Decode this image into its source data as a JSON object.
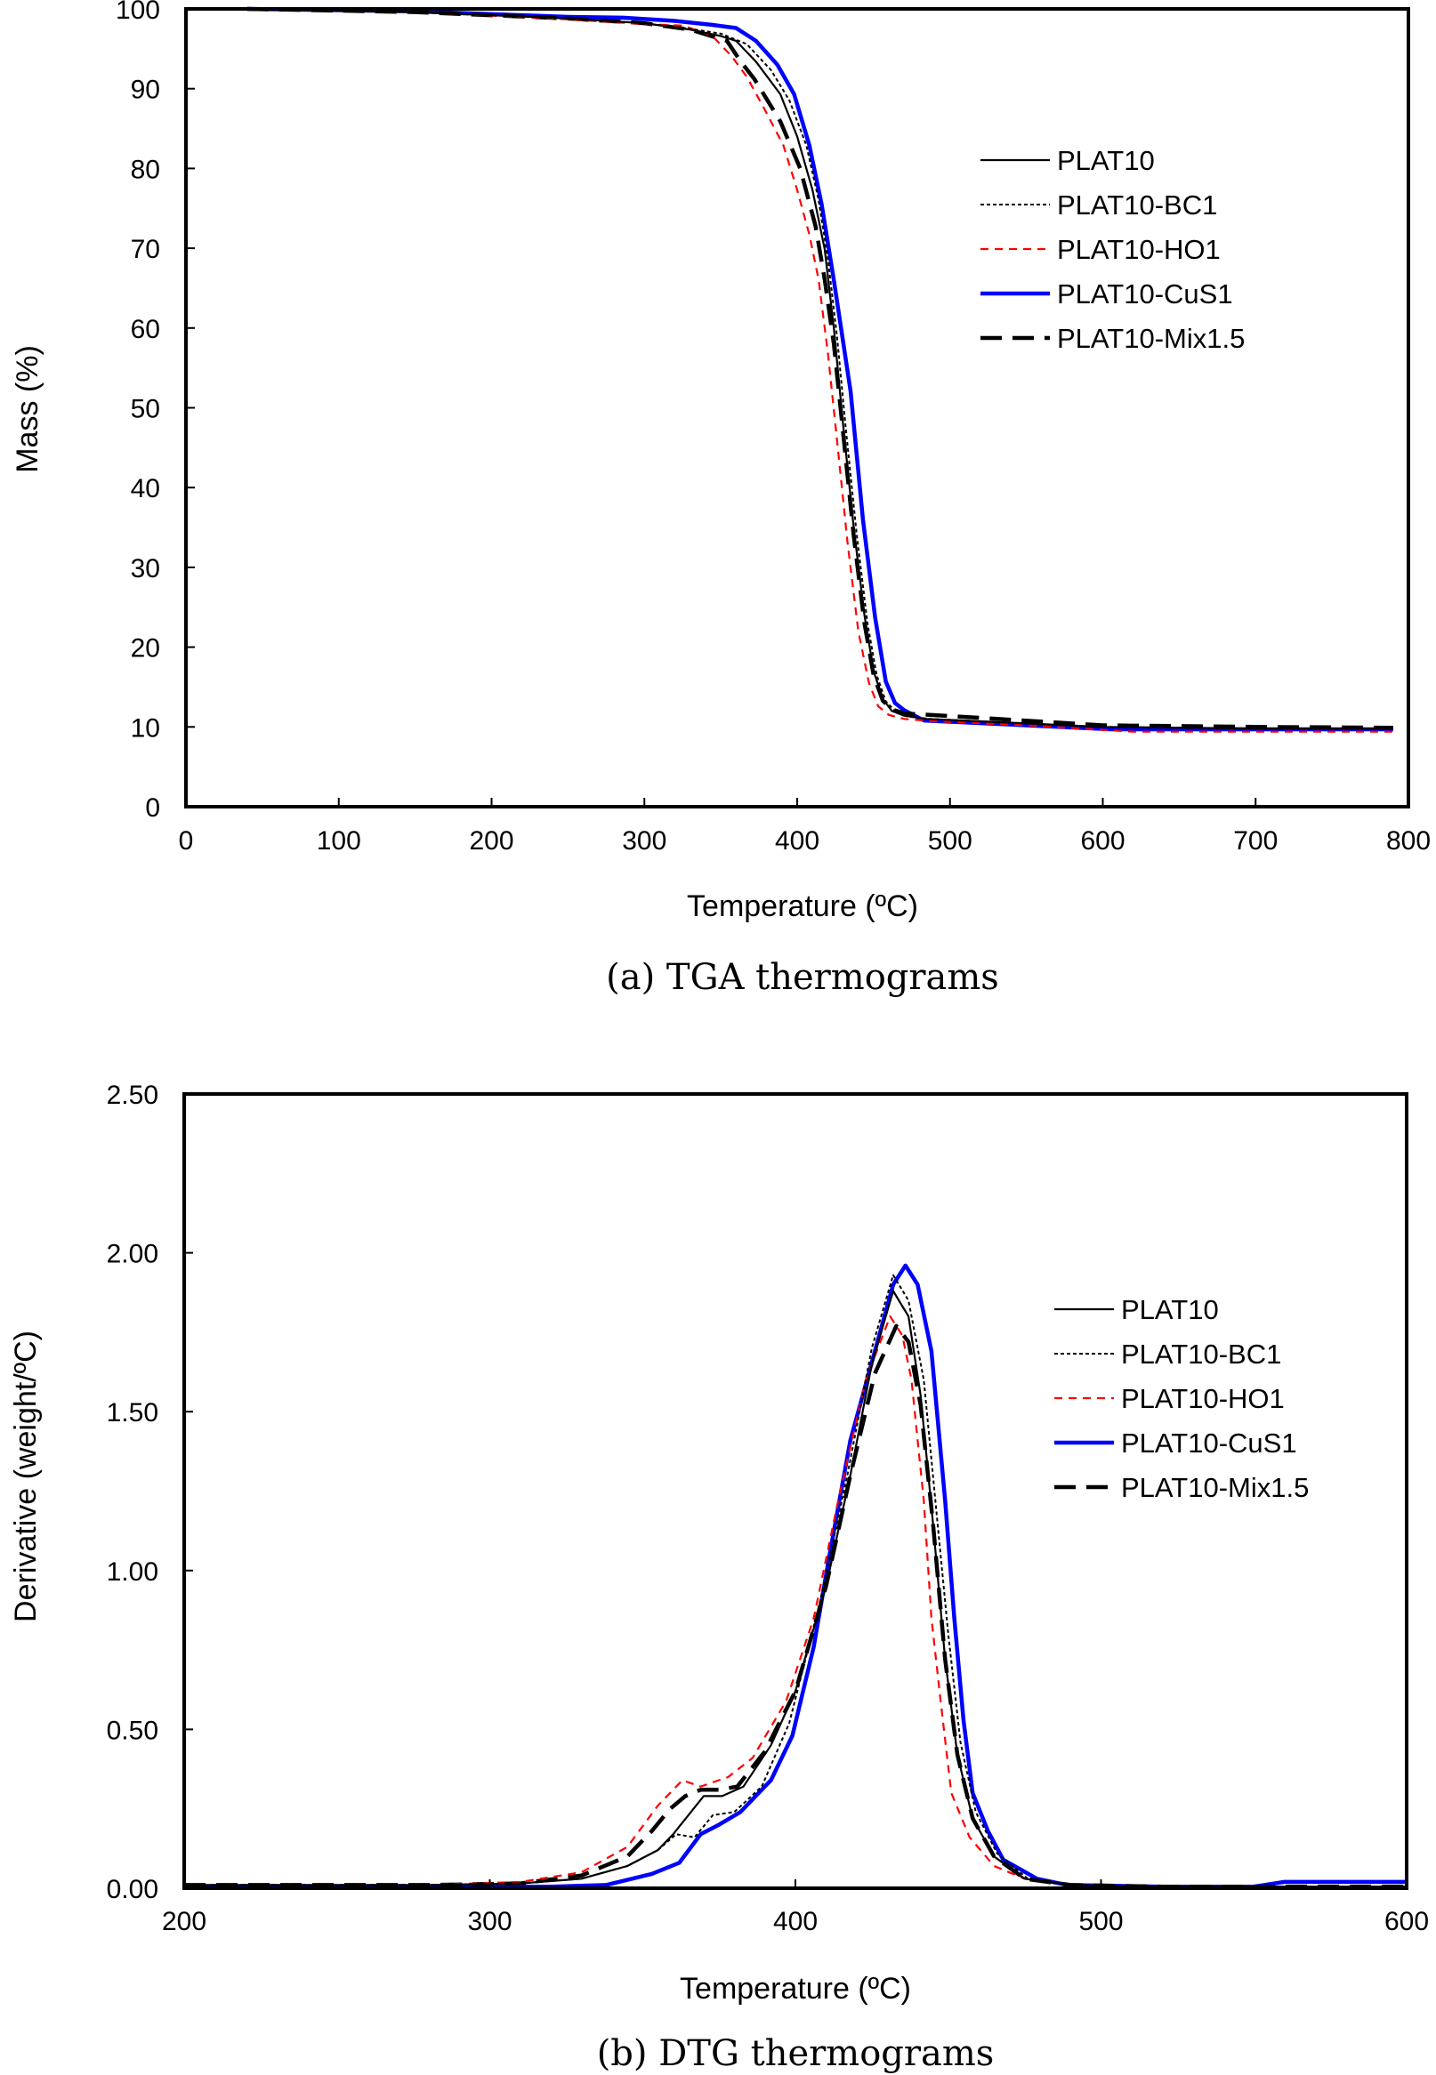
{
  "figure": {
    "captions": [
      "(a) TGA thermograms",
      "(b) DTG thermograms"
    ]
  },
  "series_styles": [
    {
      "name": "PLAT10",
      "color": "#000000",
      "style": "solid-thin"
    },
    {
      "name": "PLAT10-BC1",
      "color": "#000000",
      "style": "dotted"
    },
    {
      "name": "PLAT10-HO1",
      "color": "#ff0000",
      "style": "dashed-short"
    },
    {
      "name": "PLAT10-CuS1",
      "color": "#0000ff",
      "style": "solid-thick"
    },
    {
      "name": "PLAT10-Mix1.5",
      "color": "#000000",
      "style": "dashed-long-thick"
    }
  ],
  "chart_data": [
    {
      "type": "line",
      "title": "(a) TGA thermograms",
      "xlabel": "Temperature (ºC)",
      "ylabel": "Mass (%)",
      "xlim": [
        0,
        800
      ],
      "ylim": [
        0,
        100
      ],
      "xticks": [
        0,
        100,
        200,
        300,
        400,
        500,
        600,
        700,
        800
      ],
      "yticks": [
        0,
        10,
        20,
        30,
        40,
        50,
        60,
        70,
        80,
        90,
        100
      ],
      "xtick_labels": [
        "0",
        "100",
        "200",
        "300",
        "400",
        "500",
        "600",
        "700",
        "800"
      ],
      "ytick_labels": [
        "0",
        "10",
        "20",
        "30",
        "40",
        "50",
        "60",
        "70",
        "80",
        "90",
        "100"
      ],
      "grid": false,
      "legend_position": "top-right",
      "series": [
        {
          "name": "PLAT10",
          "x": [
            40,
            150,
            250,
            300,
            330,
            350,
            360,
            373,
            389,
            400,
            410,
            418,
            424,
            430,
            437,
            444,
            450,
            456,
            462,
            470,
            485,
            520,
            600,
            700,
            790
          ],
          "y": [
            100,
            99.6,
            98.8,
            98.2,
            97.4,
            96.6,
            96.0,
            93.4,
            89.3,
            84.0,
            77.3,
            69.9,
            60,
            48,
            35,
            24,
            17,
            13.5,
            12.0,
            11.4,
            11.0,
            10.7,
            10.0,
            9.8,
            9.8
          ]
        },
        {
          "name": "PLAT10-BC1",
          "x": [
            40,
            150,
            250,
            300,
            330,
            350,
            367,
            383,
            395,
            406,
            414,
            420,
            426,
            432,
            439,
            446,
            452,
            458,
            464,
            472,
            487,
            520,
            600,
            700,
            790
          ],
          "y": [
            100,
            99.6,
            98.8,
            98.2,
            97.5,
            96.9,
            95.6,
            92.3,
            88.5,
            82.9,
            76.1,
            68.8,
            59,
            47,
            34,
            23,
            16.5,
            13.2,
            12.0,
            11.3,
            11.0,
            10.7,
            10.0,
            9.8,
            9.8
          ]
        },
        {
          "name": "PLAT10-HO1",
          "x": [
            40,
            150,
            250,
            300,
            325,
            344,
            357,
            367,
            379,
            391,
            400,
            408,
            414,
            420,
            426,
            433,
            440,
            447,
            453,
            460,
            470,
            490,
            550,
            620,
            700,
            790
          ],
          "y": [
            100,
            99.6,
            98.7,
            98.1,
            97.9,
            96.7,
            94.1,
            91.5,
            87.3,
            82.9,
            77.3,
            71.7,
            66.1,
            57,
            46,
            33,
            22,
            15.5,
            12.6,
            11.5,
            11.0,
            10.7,
            10.2,
            9.4,
            9.4,
            9.4
          ]
        },
        {
          "name": "PLAT10-CuS1",
          "x": [
            40,
            150,
            250,
            286,
            320,
            344,
            360,
            373,
            387,
            398,
            408,
            416,
            424,
            435,
            443,
            451,
            458,
            464,
            470,
            483,
            550,
            605,
            700,
            790
          ],
          "y": [
            100,
            99.7,
            99.0,
            98.9,
            98.5,
            98.0,
            97.6,
            96.0,
            93.0,
            89.3,
            82.9,
            75.5,
            66,
            52,
            36,
            23.7,
            15.7,
            13.0,
            12.1,
            10.8,
            10.2,
            9.7,
            9.7,
            9.7
          ]
        },
        {
          "name": "PLAT10-Mix1.5",
          "x": [
            40,
            150,
            250,
            300,
            330,
            354,
            363,
            372,
            389,
            402,
            412,
            418,
            424,
            430,
            437,
            444,
            450,
            456,
            462,
            470,
            505,
            600,
            700,
            790
          ],
          "y": [
            100,
            99.6,
            98.8,
            98.2,
            97.4,
            96.0,
            93.4,
            91.2,
            85.9,
            80.0,
            72.8,
            66.1,
            58,
            47,
            34,
            23,
            16.5,
            13.3,
            12.2,
            11.7,
            11.3,
            10.2,
            10.0,
            9.9
          ]
        }
      ]
    },
    {
      "type": "line",
      "title": "(b) DTG thermograms",
      "xlabel": "Temperature (ºC)",
      "ylabel": "Derivative (weight/ºC)",
      "xlim": [
        200,
        600
      ],
      "ylim": [
        0,
        2.5
      ],
      "xticks": [
        200,
        300,
        400,
        500,
        600
      ],
      "yticks": [
        0,
        0.5,
        1.0,
        1.5,
        2.0,
        2.5
      ],
      "xtick_labels": [
        "200",
        "300",
        "400",
        "500",
        "600"
      ],
      "ytick_labels": [
        "0.00",
        "0.50",
        "1.00",
        "1.50",
        "2.00",
        "2.50"
      ],
      "grid": false,
      "legend_position": "top-right",
      "series": [
        {
          "name": "PLAT10",
          "x": [
            200,
            280,
            310,
            330,
            345,
            355,
            360,
            365,
            370,
            376,
            383,
            392,
            400,
            410,
            418,
            425,
            432,
            437,
            441,
            445,
            449,
            453,
            458,
            465,
            475,
            490,
            520,
            600
          ],
          "y": [
            0.01,
            0.01,
            0.015,
            0.03,
            0.07,
            0.12,
            0.17,
            0.23,
            0.29,
            0.29,
            0.32,
            0.45,
            0.62,
            0.95,
            1.3,
            1.65,
            1.88,
            1.8,
            1.55,
            1.15,
            0.72,
            0.42,
            0.22,
            0.1,
            0.03,
            0.01,
            0.005,
            0.005
          ]
        },
        {
          "name": "PLAT10-BC1",
          "x": [
            200,
            280,
            310,
            330,
            345,
            355,
            361,
            367,
            373,
            380,
            389,
            398,
            408,
            417,
            425,
            432,
            437,
            442,
            446,
            450,
            454,
            459,
            466,
            476,
            490,
            520,
            600
          ],
          "y": [
            0.01,
            0.01,
            0.015,
            0.03,
            0.07,
            0.12,
            0.17,
            0.16,
            0.23,
            0.24,
            0.32,
            0.52,
            0.9,
            1.3,
            1.7,
            1.93,
            1.85,
            1.6,
            1.2,
            0.8,
            0.46,
            0.24,
            0.11,
            0.03,
            0.01,
            0.005,
            0.005
          ]
        },
        {
          "name": "PLAT10-HO1",
          "x": [
            200,
            280,
            310,
            330,
            345,
            355,
            363,
            369,
            378,
            386,
            397,
            406,
            414,
            423,
            431,
            435,
            438,
            442,
            444.5,
            447.5,
            451,
            457,
            465,
            475,
            490,
            520,
            600
          ],
          "y": [
            0.01,
            0.01,
            0.02,
            0.05,
            0.13,
            0.26,
            0.34,
            0.32,
            0.35,
            0.41,
            0.59,
            0.85,
            1.22,
            1.6,
            1.8,
            1.74,
            1.6,
            1.22,
            0.85,
            0.59,
            0.3,
            0.16,
            0.07,
            0.03,
            0.01,
            0.005,
            0.005
          ]
        },
        {
          "name": "PLAT10-CuS1",
          "x": [
            200,
            300,
            320,
            338,
            353,
            362,
            369,
            375,
            382,
            392,
            399,
            406,
            411,
            418,
            426,
            432,
            436,
            440,
            444.5,
            449,
            452,
            455,
            458,
            463,
            468,
            479,
            489,
            520,
            550,
            560,
            600
          ],
          "y": [
            0.005,
            0.005,
            0.005,
            0.01,
            0.045,
            0.08,
            0.17,
            0.2,
            0.24,
            0.34,
            0.48,
            0.76,
            1.04,
            1.41,
            1.69,
            1.9,
            1.96,
            1.9,
            1.69,
            1.22,
            0.85,
            0.53,
            0.3,
            0.18,
            0.09,
            0.03,
            0.01,
            0.005,
            0.005,
            0.02,
            0.02
          ]
        },
        {
          "name": "PLAT10-Mix1.5",
          "x": [
            200,
            280,
            310,
            330,
            345,
            353,
            359,
            364,
            369,
            375,
            381,
            390,
            400,
            410,
            418,
            426,
            433,
            437,
            441,
            445,
            449,
            453,
            458,
            465,
            475,
            490,
            520,
            600
          ],
          "y": [
            0.01,
            0.01,
            0.015,
            0.04,
            0.1,
            0.18,
            0.25,
            0.29,
            0.31,
            0.31,
            0.32,
            0.43,
            0.62,
            0.95,
            1.3,
            1.62,
            1.77,
            1.72,
            1.52,
            1.15,
            0.72,
            0.42,
            0.22,
            0.1,
            0.03,
            0.01,
            0.005,
            0.005
          ]
        }
      ]
    }
  ]
}
